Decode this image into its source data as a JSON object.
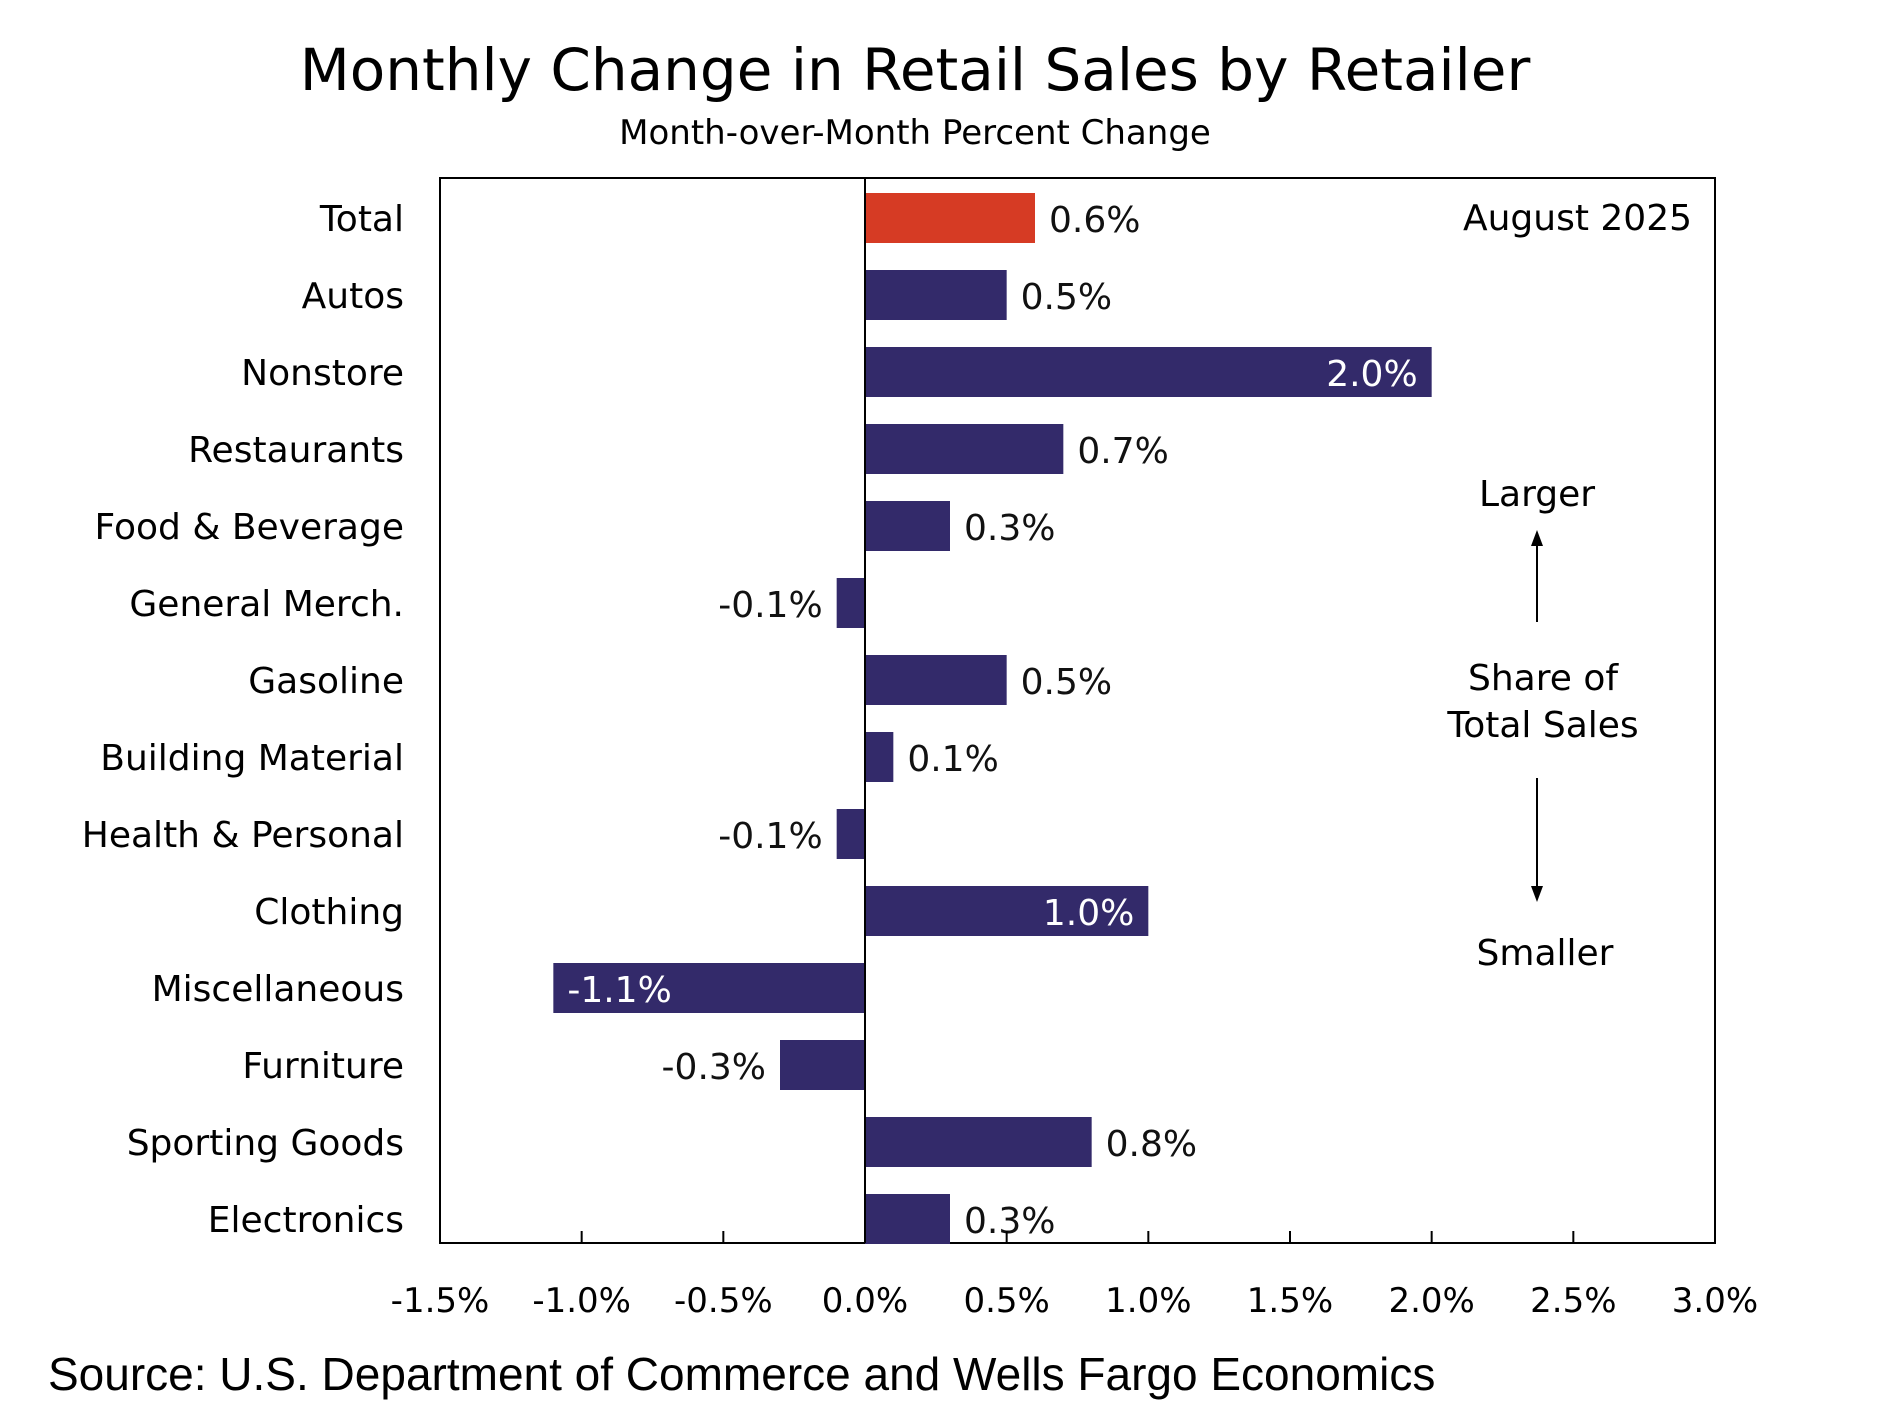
{
  "chart_data": {
    "type": "bar",
    "orientation": "horizontal",
    "title": "Monthly Change in Retail Sales by Retailer",
    "subtitle": "Month-over-Month Percent Change",
    "categories": [
      "Total",
      "Autos",
      "Nonstore",
      "Restaurants",
      "Food & Beverage",
      "General Merch.",
      "Gasoline",
      "Building Material",
      "Health & Personal",
      "Clothing",
      "Miscellaneous",
      "Furniture",
      "Sporting Goods",
      "Electronics"
    ],
    "values": [
      0.6,
      0.5,
      2.0,
      0.7,
      0.3,
      -0.1,
      0.5,
      0.1,
      -0.1,
      1.0,
      -1.1,
      -0.3,
      0.8,
      0.3
    ],
    "value_labels": [
      "0.6%",
      "0.5%",
      "2.0%",
      "0.7%",
      "0.3%",
      "-0.1%",
      "0.5%",
      "0.1%",
      "-0.1%",
      "1.0%",
      "-1.1%",
      "-0.3%",
      "0.8%",
      "0.3%"
    ],
    "xlim": [
      -1.5,
      3.0
    ],
    "x_ticks": [
      -1.5,
      -1.0,
      -0.5,
      0.0,
      0.5,
      1.0,
      1.5,
      2.0,
      2.5,
      3.0
    ],
    "x_tick_labels": [
      "-1.5%",
      "-1.0%",
      "-0.5%",
      "0.0%",
      "0.5%",
      "1.0%",
      "1.5%",
      "2.0%",
      "2.5%",
      "3.0%"
    ],
    "grid": false,
    "legend": "none",
    "colors": {
      "highlight": "#d63b24",
      "bar": "#332a6a"
    },
    "highlight_category": "Total",
    "annotations": {
      "date": "August 2025",
      "larger": "Larger",
      "share_line1": "Share of",
      "share_line2": "Total Sales",
      "smaller": "Smaller"
    },
    "source": "Source: U.S. Department of Commerce and Wells Fargo Economics"
  }
}
